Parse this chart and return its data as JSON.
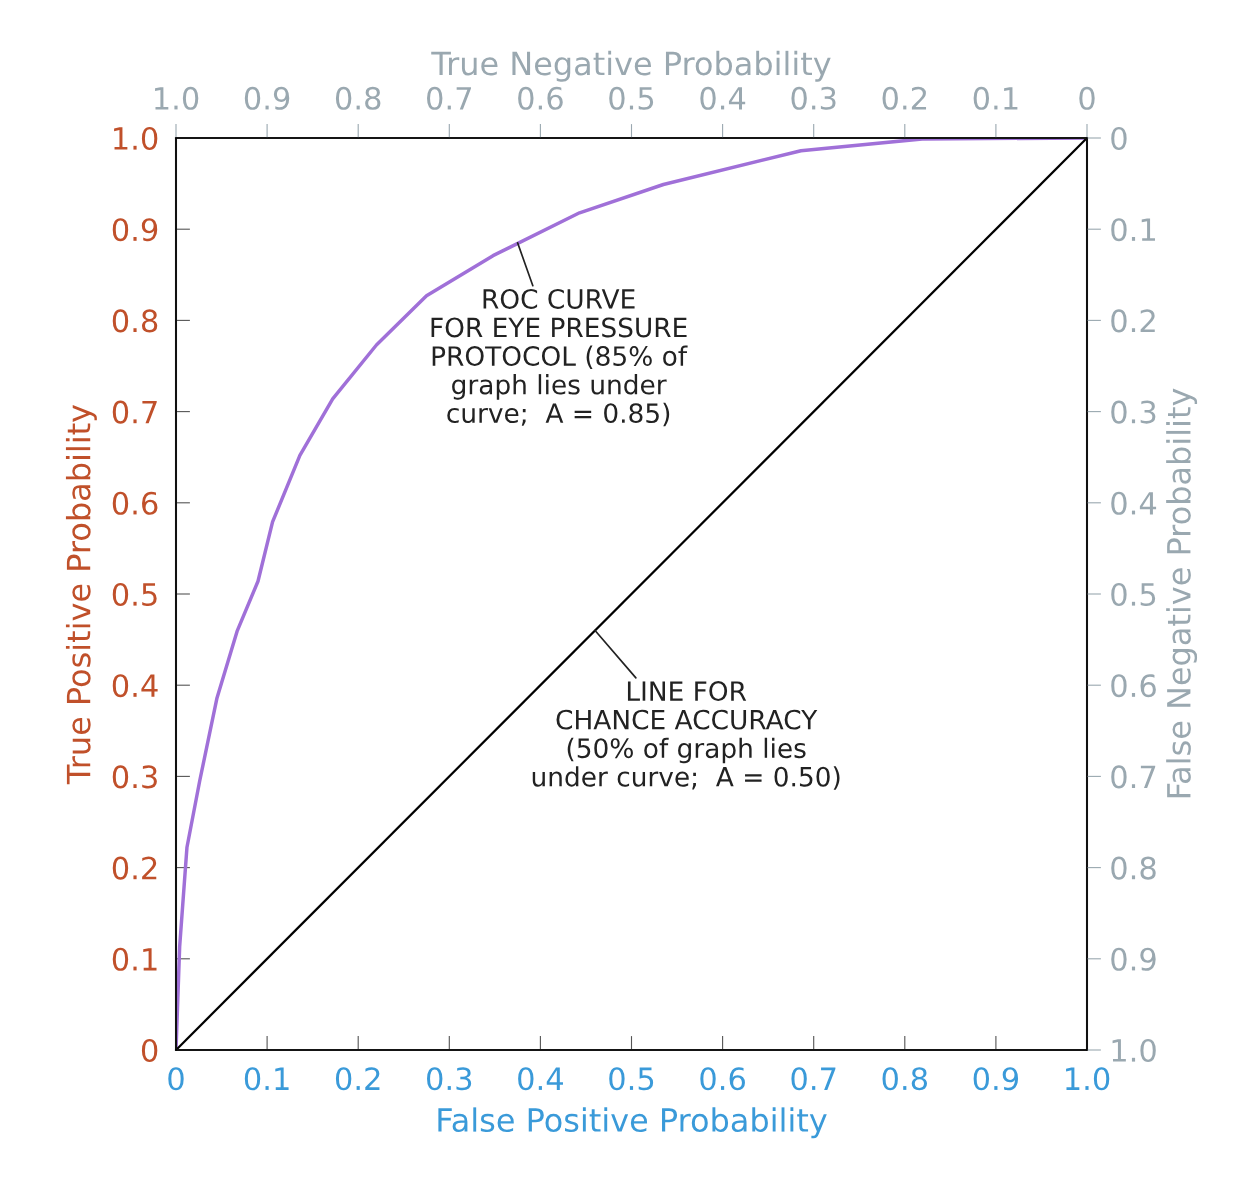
{
  "chart_data": {
    "type": "line",
    "xlabel": "False Positive Probability",
    "ylabel": "True Positive Probability",
    "x2label": "True Negative Probability",
    "y2label": "False Negative Probability",
    "xlim": [
      0,
      1
    ],
    "ylim": [
      0,
      1
    ],
    "x2lim": [
      1,
      0
    ],
    "y2lim": [
      1,
      0
    ],
    "xticks": [
      0,
      0.1,
      0.2,
      0.3,
      0.4,
      0.5,
      0.6,
      0.7,
      0.8,
      0.9,
      {
        "value": 1,
        "label": "1.0"
      }
    ],
    "yticks": [
      0,
      0.1,
      0.2,
      0.3,
      0.4,
      0.5,
      0.6,
      0.7,
      0.8,
      0.9,
      {
        "value": 1,
        "label": "1.0"
      }
    ],
    "x2ticks": [
      {
        "value": 1,
        "label": "1.0"
      },
      0.9,
      0.8,
      0.7,
      0.6,
      0.5,
      0.4,
      0.3,
      0.2,
      0.1,
      0
    ],
    "y2ticks": [
      0,
      0.1,
      0.2,
      0.3,
      0.4,
      0.5,
      0.6,
      0.7,
      0.8,
      0.9,
      {
        "value": 1,
        "label": "1.0"
      }
    ],
    "grid": false,
    "legend": false,
    "marker": "none",
    "line_style": "solid",
    "series": [
      {
        "color": "#a070d8",
        "x": [
          0,
          0.004,
          0.012,
          0.026,
          0.045,
          0.067,
          0.09,
          0.106,
          0.136,
          0.172,
          0.22,
          0.275,
          0.348,
          0.443,
          0.535,
          0.686,
          0.819,
          1
        ],
        "values": [
          0,
          0.113,
          0.222,
          0.295,
          0.386,
          0.459,
          0.514,
          0.579,
          0.652,
          0.714,
          0.773,
          0.827,
          0.871,
          0.918,
          0.949,
          0.986,
          0.999,
          1
        ]
      },
      {
        "color": "#000000",
        "x": [
          0,
          1
        ],
        "values": [
          0,
          1
        ]
      }
    ],
    "annotations": [
      {
        "text": "ROC CURVE\nFOR EYE PRESSURE\nPROTOCOL (85% of\ngraph lies under\ncurve;  A = 0.85)",
        "x": 0.375,
        "y": 0.885
      },
      {
        "text": "LINE FOR\nCHANCE ACCURACY\n(50% of graph lies\nunder curve;  A = 0.50)",
        "x": 0.46,
        "y": 0.46
      }
    ]
  }
}
